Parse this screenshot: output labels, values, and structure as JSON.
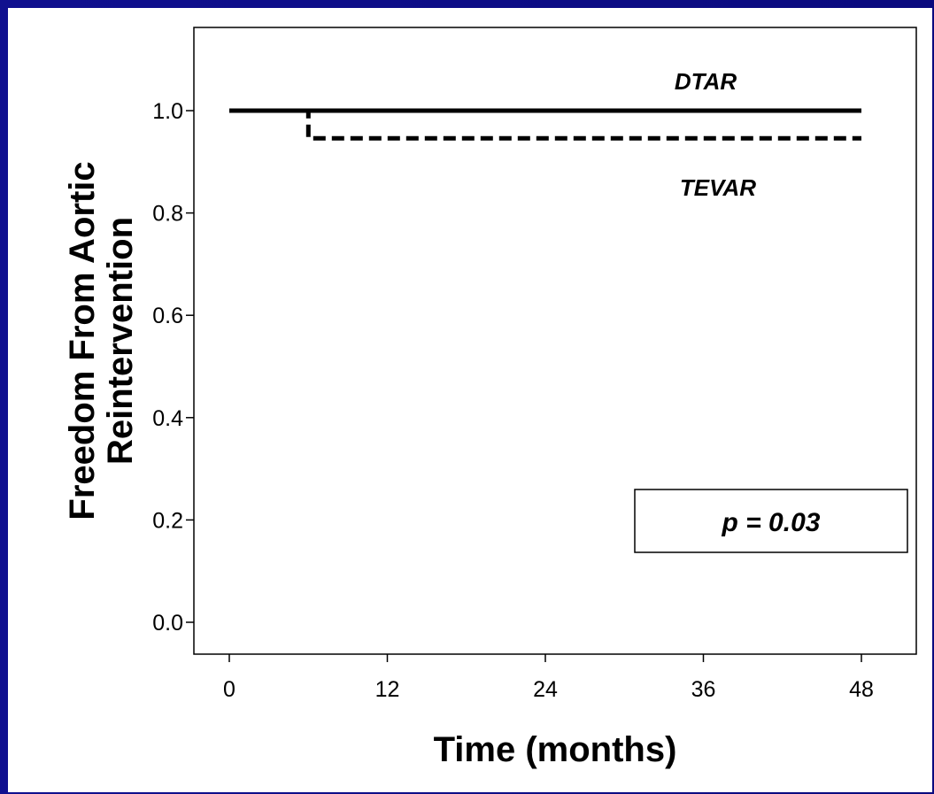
{
  "chart_data": {
    "type": "line",
    "step": true,
    "xlabel": "Time (months)",
    "ylabel_lines": [
      "Freedom From Aortic",
      "Reintervention"
    ],
    "xlim": [
      0,
      48
    ],
    "ylim": [
      0,
      1.0
    ],
    "x_ticks": [
      0,
      12,
      24,
      36,
      48
    ],
    "y_ticks": [
      0.0,
      0.2,
      0.4,
      0.6,
      0.8,
      1.0
    ],
    "x_tick_labels": [
      "0",
      "12",
      "24",
      "36",
      "48"
    ],
    "y_tick_labels": [
      "0.0",
      "0.2",
      "0.4",
      "0.6",
      "0.8",
      "1.0"
    ],
    "grid": false,
    "series": [
      {
        "name": "DTAR",
        "style": "solid",
        "x": [
          0,
          48
        ],
        "y": [
          1.0,
          1.0
        ]
      },
      {
        "name": "TEVAR",
        "style": "dashed",
        "x": [
          0,
          6,
          6,
          48
        ],
        "y": [
          1.0,
          1.0,
          0.946,
          0.946
        ]
      }
    ],
    "annotation": "p = 0.03"
  },
  "colors": {
    "background": "#0b0b8a",
    "panel": "#ffffff",
    "ink": "#000000"
  }
}
